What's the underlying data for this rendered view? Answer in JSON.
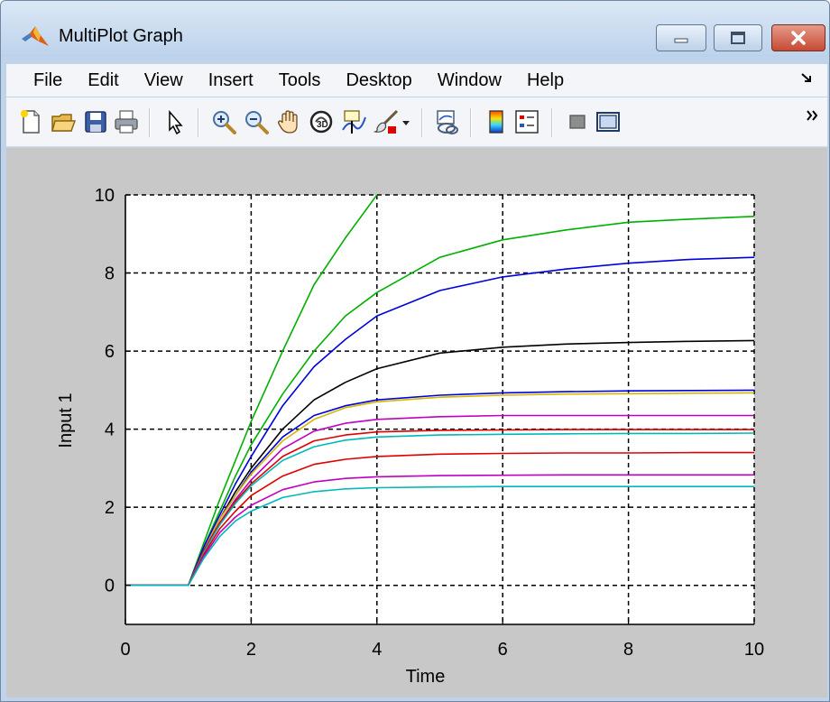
{
  "window": {
    "title": "MultiPlot Graph",
    "controls": {
      "minimize": "minimize",
      "maximize": "maximize",
      "close": "close"
    }
  },
  "menu": {
    "items": [
      "File",
      "Edit",
      "View",
      "Insert",
      "Tools",
      "Desktop",
      "Window",
      "Help"
    ],
    "overflow_icon": "menu-overflow-icon"
  },
  "toolbar": {
    "buttons": [
      "new-figure-icon",
      "open-file-icon",
      "save-icon",
      "print-icon",
      "edit-plot-arrow-icon",
      "zoom-in-icon",
      "zoom-out-icon",
      "pan-hand-icon",
      "rotate-3d-icon",
      "data-cursor-icon",
      "brush-icon",
      "brush-dropdown-icon",
      "link-plot-icon",
      "insert-colorbar-icon",
      "insert-legend-icon",
      "hide-plot-tools-icon",
      "show-plot-tools-icon"
    ],
    "overflow_icon": "toolbar-overflow-icon"
  },
  "chart_data": {
    "type": "line",
    "title": "",
    "xlabel": "Time",
    "ylabel": "Input 1",
    "xlim": [
      0,
      10
    ],
    "ylim": [
      -1,
      10
    ],
    "xticks": [
      0,
      2,
      4,
      6,
      8,
      10
    ],
    "yticks": [
      0,
      2,
      4,
      6,
      8,
      10
    ],
    "grid": true,
    "grid_style": "dashed",
    "legend": "none",
    "x": [
      0,
      0.5,
      1,
      1.25,
      1.5,
      1.75,
      2,
      2.5,
      3,
      3.5,
      4,
      5,
      6,
      7,
      8,
      9,
      10
    ],
    "series": [
      {
        "color": "#00b000",
        "values": [
          0,
          0,
          0,
          1.1,
          2.2,
          3.2,
          4.2,
          6.0,
          7.7,
          8.9,
          10.0,
          null,
          null,
          null,
          null,
          null,
          null
        ]
      },
      {
        "color": "#00b000",
        "values": [
          0,
          0,
          0,
          1.0,
          1.9,
          2.8,
          3.6,
          4.9,
          6.0,
          6.9,
          7.5,
          8.4,
          8.85,
          9.1,
          9.3,
          9.38,
          9.45
        ]
      },
      {
        "color": "#0000dd",
        "values": [
          0,
          0,
          0,
          1.0,
          1.8,
          2.6,
          3.3,
          4.6,
          5.6,
          6.3,
          6.9,
          7.55,
          7.9,
          8.1,
          8.25,
          8.35,
          8.4
        ]
      },
      {
        "color": "#000000",
        "values": [
          0,
          0,
          0,
          0.9,
          1.7,
          2.4,
          3.0,
          4.0,
          4.75,
          5.2,
          5.55,
          5.95,
          6.1,
          6.18,
          6.22,
          6.25,
          6.27
        ]
      },
      {
        "color": "#0000dd",
        "values": [
          0,
          0,
          0,
          0.9,
          1.7,
          2.3,
          2.9,
          3.8,
          4.35,
          4.6,
          4.75,
          4.87,
          4.93,
          4.96,
          4.98,
          4.99,
          5.0
        ]
      },
      {
        "color": "#d4b800",
        "values": [
          0,
          0,
          0,
          0.9,
          1.7,
          2.3,
          2.85,
          3.7,
          4.25,
          4.55,
          4.7,
          4.82,
          4.87,
          4.9,
          4.91,
          4.92,
          4.93
        ]
      },
      {
        "color": "#c000c0",
        "values": [
          0,
          0,
          0,
          0.9,
          1.6,
          2.2,
          2.7,
          3.5,
          3.95,
          4.15,
          4.25,
          4.32,
          4.35,
          4.35,
          4.35,
          4.35,
          4.35
        ]
      },
      {
        "color": "#e00000",
        "values": [
          0,
          0,
          0,
          0.9,
          1.6,
          2.15,
          2.6,
          3.3,
          3.7,
          3.85,
          3.93,
          3.97,
          3.98,
          3.99,
          3.99,
          3.99,
          3.99
        ]
      },
      {
        "color": "#00b8b8",
        "values": [
          0,
          0,
          0,
          0.85,
          1.55,
          2.1,
          2.55,
          3.2,
          3.55,
          3.72,
          3.8,
          3.85,
          3.87,
          3.88,
          3.89,
          3.89,
          3.9
        ]
      },
      {
        "color": "#e00000",
        "values": [
          0,
          0,
          0,
          0.8,
          1.45,
          1.9,
          2.3,
          2.8,
          3.1,
          3.23,
          3.3,
          3.36,
          3.38,
          3.39,
          3.39,
          3.4,
          3.4
        ]
      },
      {
        "color": "#c000c0",
        "values": [
          0,
          0,
          0,
          0.75,
          1.35,
          1.75,
          2.05,
          2.45,
          2.65,
          2.74,
          2.78,
          2.81,
          2.82,
          2.83,
          2.83,
          2.83,
          2.83
        ]
      },
      {
        "color": "#00b8b8",
        "values": [
          0,
          0,
          0,
          0.7,
          1.25,
          1.65,
          1.9,
          2.25,
          2.4,
          2.47,
          2.5,
          2.52,
          2.53,
          2.53,
          2.53,
          2.53,
          2.53
        ]
      }
    ]
  }
}
